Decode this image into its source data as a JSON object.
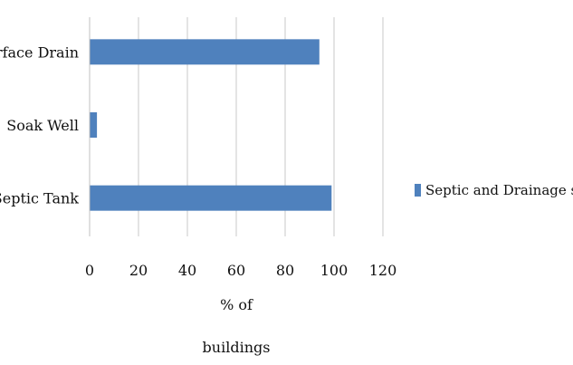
{
  "chart_data": {
    "type": "bar",
    "orientation": "horizontal",
    "categories": [
      "Surface Drain",
      "Soak Well",
      "Septic Tank"
    ],
    "series": [
      {
        "name": "Septic and Drainage system",
        "values": [
          94,
          3,
          99
        ],
        "color": "#4F81BD"
      }
    ],
    "xlabel": "% of buildings",
    "xlabel_lines": [
      "% of",
      "buildings"
    ],
    "xlim": [
      0,
      120
    ],
    "xticks": [
      0,
      20,
      40,
      60,
      80,
      100,
      120
    ],
    "grid": "vertical",
    "legend": "right"
  }
}
